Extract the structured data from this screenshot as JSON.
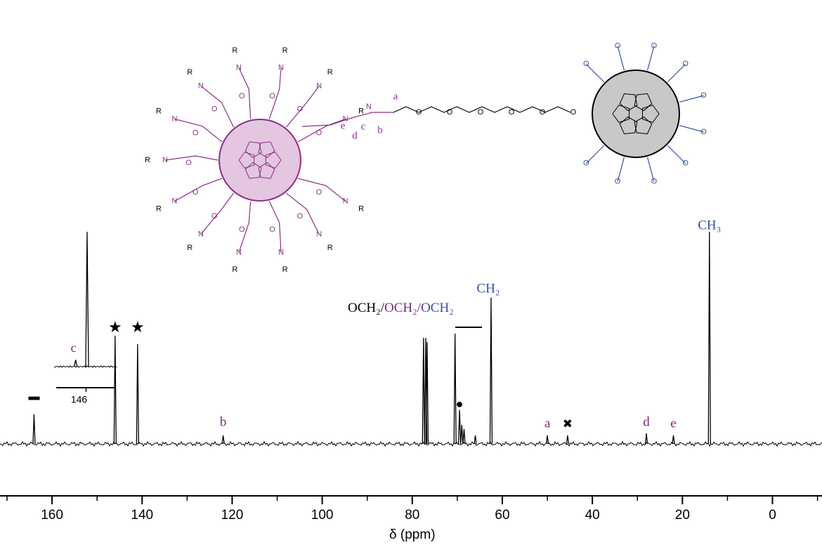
{
  "chart_data": [
    {
      "type": "spectrum",
      "xlabel": "δ (ppm)",
      "xlim": [
        170,
        -11
      ],
      "xticks": [
        160,
        140,
        120,
        100,
        80,
        60,
        40,
        20,
        0
      ],
      "color": "#000000",
      "x": [
        164,
        146,
        141,
        122,
        77.5,
        77.0,
        76.7,
        70.5,
        69.5,
        69.0,
        68.5,
        66,
        62.5,
        50,
        45.5,
        28,
        22,
        14
      ],
      "values": [
        14,
        51,
        47,
        4,
        50,
        50,
        48,
        52,
        16,
        9,
        7,
        4,
        69,
        4,
        4,
        5,
        4,
        100
      ],
      "annotations": [
        {
          "text": "▬",
          "x": 164,
          "color": "#000000"
        },
        {
          "text": "★",
          "x": 146,
          "color": "#000000"
        },
        {
          "text": "★",
          "x": 141,
          "color": "#000000"
        },
        {
          "text": "b",
          "x": 122,
          "color": "#7b2a78"
        },
        {
          "text": "●",
          "x": 69.5,
          "color": "#000000"
        },
        {
          "text": "CH₂",
          "x": 62.5,
          "color": "#3a4fa0"
        },
        {
          "text": "a",
          "x": 50,
          "color": "#7b2a78"
        },
        {
          "text": "✖",
          "x": 45.5,
          "color": "#000000"
        },
        {
          "text": "d",
          "x": 28,
          "color": "#7b2a78"
        },
        {
          "text": "e",
          "x": 22,
          "color": "#7b2a78"
        },
        {
          "text": "CH₃",
          "x": 14,
          "color": "#3a4fa0"
        }
      ],
      "group_label": [
        {
          "text": "OCH₂/",
          "color": "#000000"
        },
        {
          "text": "OCH₂/",
          "color": "#7b2a78"
        },
        {
          "text": "OCH₂",
          "color": "#3a4fa0"
        }
      ]
    },
    {
      "type": "inset",
      "xlim": [
        148,
        144
      ],
      "xticks": [
        146
      ],
      "color": "#000000",
      "x": [
        146.7,
        145.93
      ],
      "values": [
        5,
        100
      ],
      "annotations": [
        {
          "text": "c",
          "x": 146.7,
          "color": "#7b2a78"
        }
      ]
    }
  ],
  "structure": {
    "end_group": "R",
    "oxygen": "O",
    "nitrogen": "N",
    "chain_labels": [
      "a",
      "b",
      "c",
      "d",
      "e"
    ],
    "left_color": "#8b2f86",
    "right_color": "#3a4fa0"
  }
}
